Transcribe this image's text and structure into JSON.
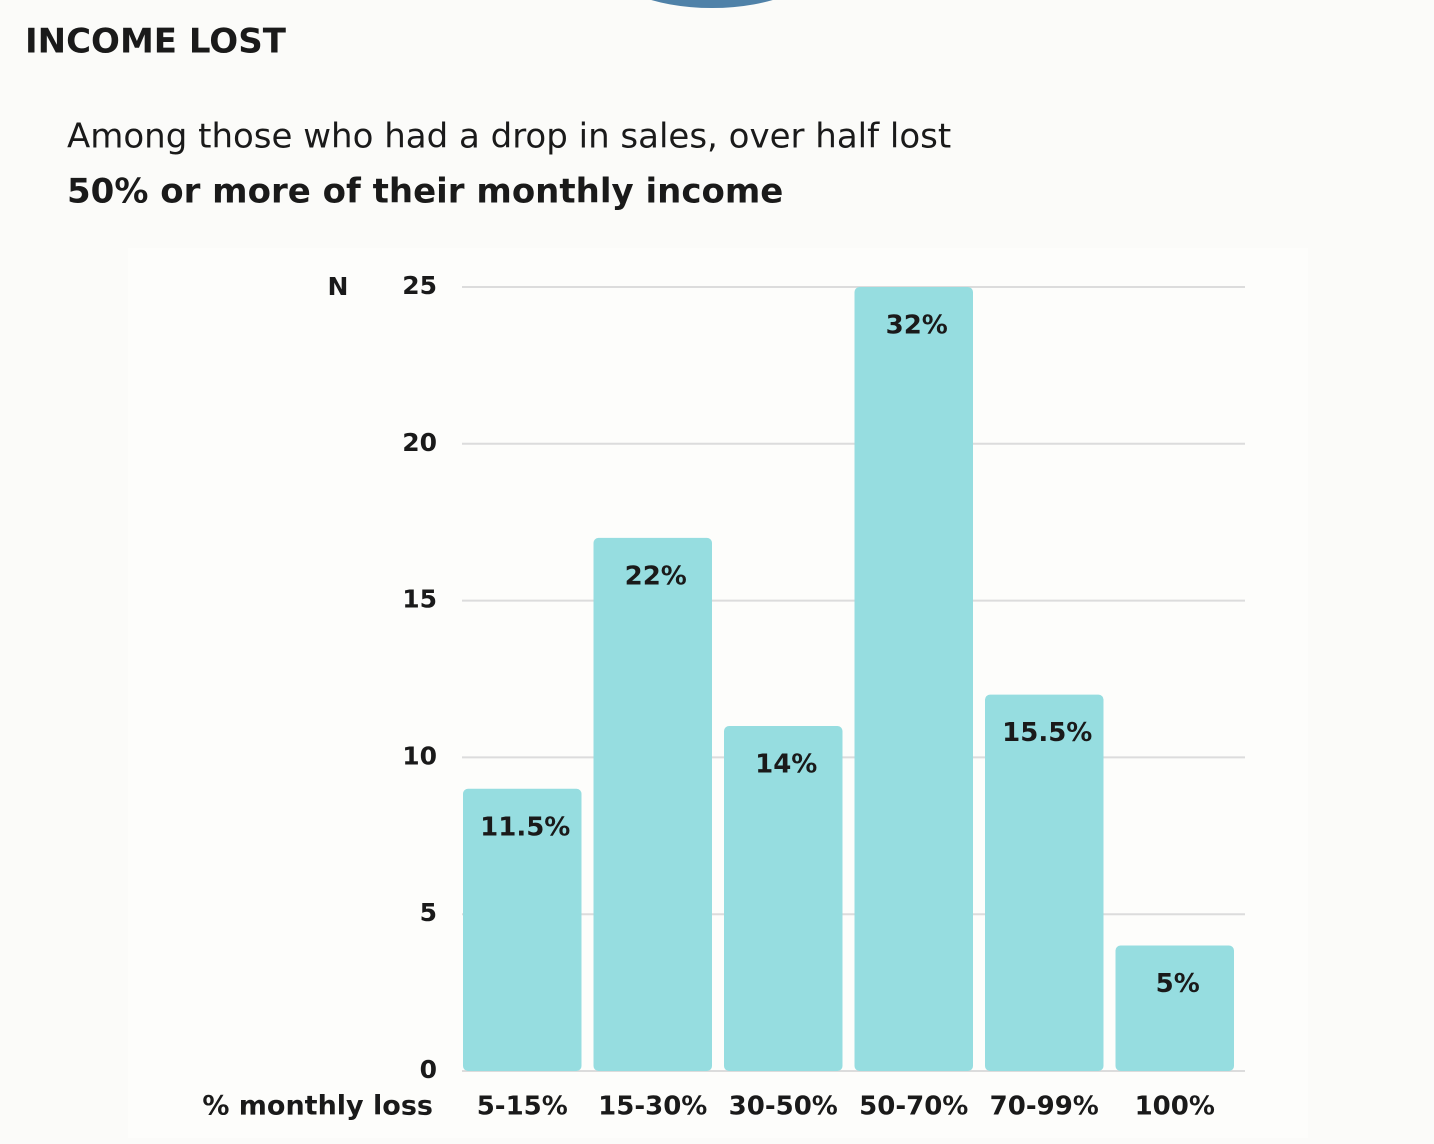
{
  "chart_data": {
    "type": "bar",
    "title": "INCOME LOST",
    "subtitle": "Among those who had a drop in sales, over half lost",
    "subtitle_bold": "50% or more of their monthly income",
    "y_label": "N",
    "x_label": "% monthly loss",
    "categories": [
      "5-15%",
      "15-30%",
      "30-50%",
      "50-70%",
      "70-99%",
      "100%"
    ],
    "values": [
      9,
      17,
      11,
      25,
      12,
      4
    ],
    "shares": [
      {
        "value": 11.5,
        "label": "11.5%"
      },
      {
        "value": 22,
        "label": "22%"
      },
      {
        "value": 14,
        "label": "14%"
      },
      {
        "value": 32,
        "label": "32%"
      },
      {
        "value": 15.5,
        "label": "15.5%"
      },
      {
        "value": 5,
        "label": "5%"
      }
    ],
    "color": "#96dde0",
    "ylim": [
      0,
      25
    ],
    "yticks": [
      0,
      5,
      10,
      15,
      20,
      25
    ],
    "grid": true
  }
}
